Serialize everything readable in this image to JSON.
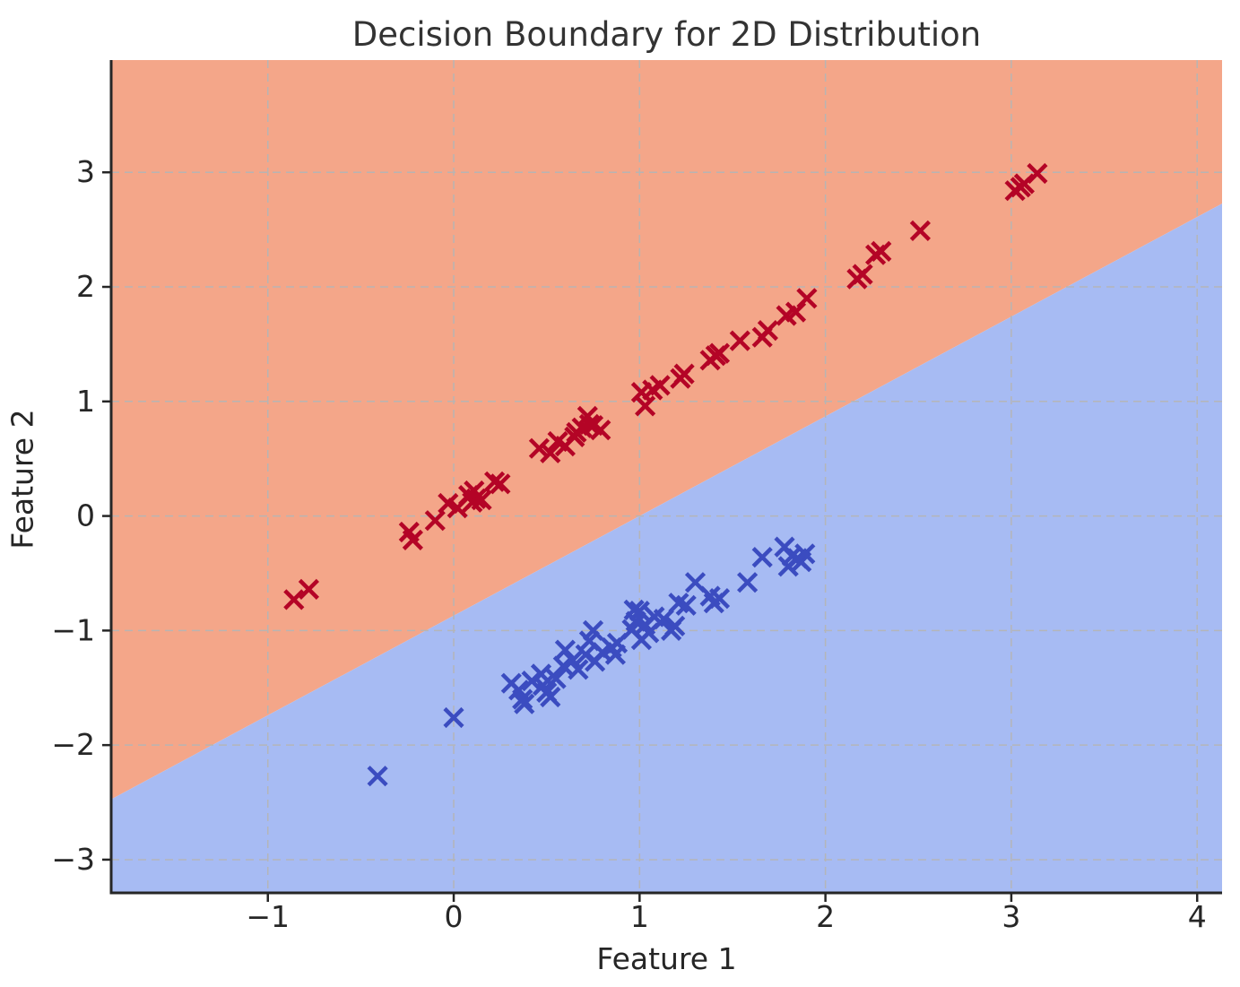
{
  "title": "Decision Boundary for 2D Distribution",
  "chart_data": {
    "type": "scatter",
    "title": "Decision Boundary for 2D Distribution",
    "xlabel": "Feature 1",
    "ylabel": "Feature 2",
    "xlim": [
      -1.843,
      4.134
    ],
    "ylim": [
      -3.29,
      3.98
    ],
    "xticks": [
      -1,
      0,
      1,
      2,
      3,
      4
    ],
    "yticks": [
      -3,
      -2,
      -1,
      0,
      1,
      2,
      3
    ],
    "xtick_labels": [
      "−1",
      "0",
      "1",
      "2",
      "3",
      "4"
    ],
    "ytick_labels": [
      "−3",
      "−2",
      "−1",
      "0",
      "1",
      "2",
      "3"
    ],
    "grid": {
      "on": true,
      "style": "dashed",
      "color": "#b5b5b5"
    },
    "legend": "none",
    "decision_boundary": {
      "slope": 0.87,
      "intercept": -0.87,
      "description": "y = 0.87x − 0.87"
    },
    "regions": [
      {
        "name": "class-red-region",
        "side": "above-boundary",
        "color": "#f4a689"
      },
      {
        "name": "class-blue-region",
        "side": "below-boundary",
        "color": "#a7bbf3"
      }
    ],
    "series": [
      {
        "name": "class-0-red",
        "marker": "x",
        "color": "#b40426",
        "points": [
          [
            -0.86,
            -0.73
          ],
          [
            -0.78,
            -0.64
          ],
          [
            -0.24,
            -0.14
          ],
          [
            -0.22,
            -0.21
          ],
          [
            -0.1,
            -0.04
          ],
          [
            -0.03,
            0.11
          ],
          [
            0.02,
            0.07
          ],
          [
            0.08,
            0.18
          ],
          [
            0.1,
            0.12
          ],
          [
            0.11,
            0.22
          ],
          [
            0.12,
            0.15
          ],
          [
            0.15,
            0.14
          ],
          [
            0.22,
            0.3
          ],
          [
            0.25,
            0.28
          ],
          [
            0.46,
            0.59
          ],
          [
            0.52,
            0.55
          ],
          [
            0.56,
            0.65
          ],
          [
            0.6,
            0.61
          ],
          [
            0.65,
            0.69
          ],
          [
            0.66,
            0.73
          ],
          [
            0.69,
            0.77
          ],
          [
            0.72,
            0.87
          ],
          [
            0.73,
            0.8
          ],
          [
            0.75,
            0.79
          ],
          [
            0.79,
            0.75
          ],
          [
            1.01,
            1.08
          ],
          [
            1.03,
            0.96
          ],
          [
            1.07,
            1.1
          ],
          [
            1.11,
            1.14
          ],
          [
            1.22,
            1.2
          ],
          [
            1.24,
            1.24
          ],
          [
            1.38,
            1.36
          ],
          [
            1.41,
            1.4
          ],
          [
            1.43,
            1.42
          ],
          [
            1.54,
            1.53
          ],
          [
            1.66,
            1.56
          ],
          [
            1.69,
            1.62
          ],
          [
            1.79,
            1.75
          ],
          [
            1.84,
            1.78
          ],
          [
            1.9,
            1.9
          ],
          [
            2.17,
            2.07
          ],
          [
            2.2,
            2.11
          ],
          [
            2.27,
            2.28
          ],
          [
            2.3,
            2.31
          ],
          [
            2.51,
            2.49
          ],
          [
            3.02,
            2.84
          ],
          [
            3.05,
            2.87
          ],
          [
            3.07,
            2.9
          ],
          [
            3.14,
            2.99
          ]
        ]
      },
      {
        "name": "class-1-blue",
        "marker": "x",
        "color": "#3b4cc0",
        "points": [
          [
            -0.41,
            -2.27
          ],
          [
            0.0,
            -1.76
          ],
          [
            0.31,
            -1.46
          ],
          [
            0.35,
            -1.52
          ],
          [
            0.37,
            -1.6
          ],
          [
            0.38,
            -1.64
          ],
          [
            0.42,
            -1.44
          ],
          [
            0.47,
            -1.38
          ],
          [
            0.48,
            -1.48
          ],
          [
            0.5,
            -1.54
          ],
          [
            0.52,
            -1.58
          ],
          [
            0.55,
            -1.42
          ],
          [
            0.59,
            -1.31
          ],
          [
            0.6,
            -1.17
          ],
          [
            0.64,
            -1.26
          ],
          [
            0.67,
            -1.34
          ],
          [
            0.71,
            -1.21
          ],
          [
            0.73,
            -1.09
          ],
          [
            0.75,
            -1.0
          ],
          [
            0.76,
            -1.27
          ],
          [
            0.8,
            -1.19
          ],
          [
            0.85,
            -1.15
          ],
          [
            0.87,
            -1.21
          ],
          [
            0.88,
            -1.11
          ],
          [
            0.96,
            -0.99
          ],
          [
            0.97,
            -0.82
          ],
          [
            0.98,
            -0.92
          ],
          [
            1.0,
            -0.83
          ],
          [
            1.01,
            -1.08
          ],
          [
            1.03,
            -0.95
          ],
          [
            1.05,
            -1.02
          ],
          [
            1.08,
            -0.88
          ],
          [
            1.13,
            -0.9
          ],
          [
            1.17,
            -1.0
          ],
          [
            1.19,
            -0.96
          ],
          [
            1.21,
            -0.76
          ],
          [
            1.25,
            -0.78
          ],
          [
            1.3,
            -0.58
          ],
          [
            1.38,
            -0.7
          ],
          [
            1.4,
            -0.76
          ],
          [
            1.43,
            -0.72
          ],
          [
            1.58,
            -0.58
          ],
          [
            1.66,
            -0.36
          ],
          [
            1.78,
            -0.27
          ],
          [
            1.8,
            -0.44
          ],
          [
            1.82,
            -0.35
          ],
          [
            1.85,
            -0.37
          ],
          [
            1.87,
            -0.4
          ],
          [
            1.89,
            -0.33
          ]
        ]
      }
    ]
  }
}
